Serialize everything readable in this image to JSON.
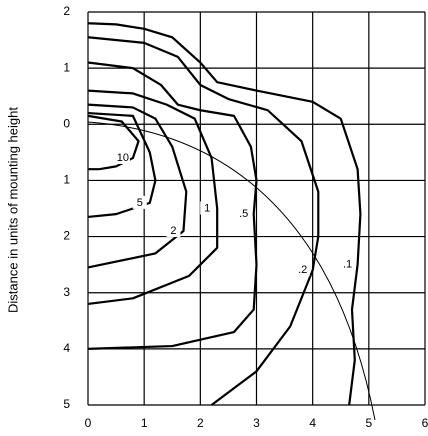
{
  "chart_data": {
    "type": "contour",
    "ylabel": "Distance in units of mounting height",
    "xlim": [
      0,
      6
    ],
    "xticks": [
      0,
      1,
      2,
      3,
      4,
      5,
      6
    ],
    "ylim": [
      -5,
      2
    ],
    "yticks": [
      2,
      1,
      0,
      {
        "value": -1,
        "label": "1"
      },
      {
        "value": -2,
        "label": "2"
      },
      {
        "value": -3,
        "label": "3"
      },
      {
        "value": -4,
        "label": "4"
      },
      {
        "value": -5,
        "label": "5"
      }
    ],
    "grid": true,
    "color": "#000000",
    "series": [
      {
        "name": ".1",
        "x": [
          0,
          0.5,
          1,
          1.5,
          2,
          2.3,
          3,
          4,
          4.5,
          4.8,
          4.85,
          4.8,
          4.7,
          4.75,
          4.65
        ],
        "y": [
          1.8,
          1.78,
          1.7,
          1.55,
          1.1,
          0.75,
          0.6,
          0.4,
          0.1,
          -0.8,
          -1.6,
          -2.5,
          -3.3,
          -4.2,
          -5
        ]
      },
      {
        "name": ".2",
        "x": [
          0,
          1,
          1.6,
          2,
          2.5,
          3.2,
          3.8,
          4.1,
          4.1,
          4,
          3.6,
          3,
          2.2
        ],
        "y": [
          1.55,
          1.45,
          1.2,
          0.7,
          0.45,
          0.25,
          -0.3,
          -1.2,
          -2,
          -2.6,
          -3.6,
          -4.4,
          -5
        ]
      },
      {
        "name": ".5",
        "x": [
          0,
          0.8,
          1.3,
          1.6,
          2,
          2.6,
          2.9,
          3,
          2.95,
          3,
          2.95,
          2.6,
          1.5,
          0
        ],
        "y": [
          1.1,
          1,
          0.7,
          0.35,
          0.25,
          0.15,
          -0.4,
          -1,
          -1.6,
          -2.5,
          -3.3,
          -3.7,
          -3.95,
          -4
        ]
      },
      {
        "name": "1",
        "x": [
          0,
          0.8,
          1.4,
          1.9,
          2.2,
          2.3,
          2.3,
          1.8,
          0.8,
          0
        ],
        "y": [
          0.6,
          0.55,
          0.35,
          0.1,
          -0.6,
          -1.5,
          -2.2,
          -2.7,
          -3.1,
          -3.2
        ]
      },
      {
        "name": "2",
        "x": [
          0,
          0.8,
          1.2,
          1.5,
          1.75,
          1.7,
          1.2,
          0
        ],
        "y": [
          0.35,
          0.3,
          0.1,
          -0.4,
          -1.2,
          -1.9,
          -2.3,
          -2.55
        ]
      },
      {
        "name": "5",
        "x": [
          0,
          0.8,
          1.1,
          1.2,
          1.1,
          0.5,
          0
        ],
        "y": [
          0.2,
          0.15,
          -0.5,
          -1,
          -1.4,
          -1.6,
          -1.65
        ]
      },
      {
        "name": "10",
        "x": [
          0,
          0.6,
          0.9,
          0.8,
          0.5,
          0.2,
          0
        ],
        "y": [
          0.15,
          0.05,
          -0.3,
          -0.6,
          -0.75,
          -0.8,
          -0.8
        ]
      }
    ]
  }
}
